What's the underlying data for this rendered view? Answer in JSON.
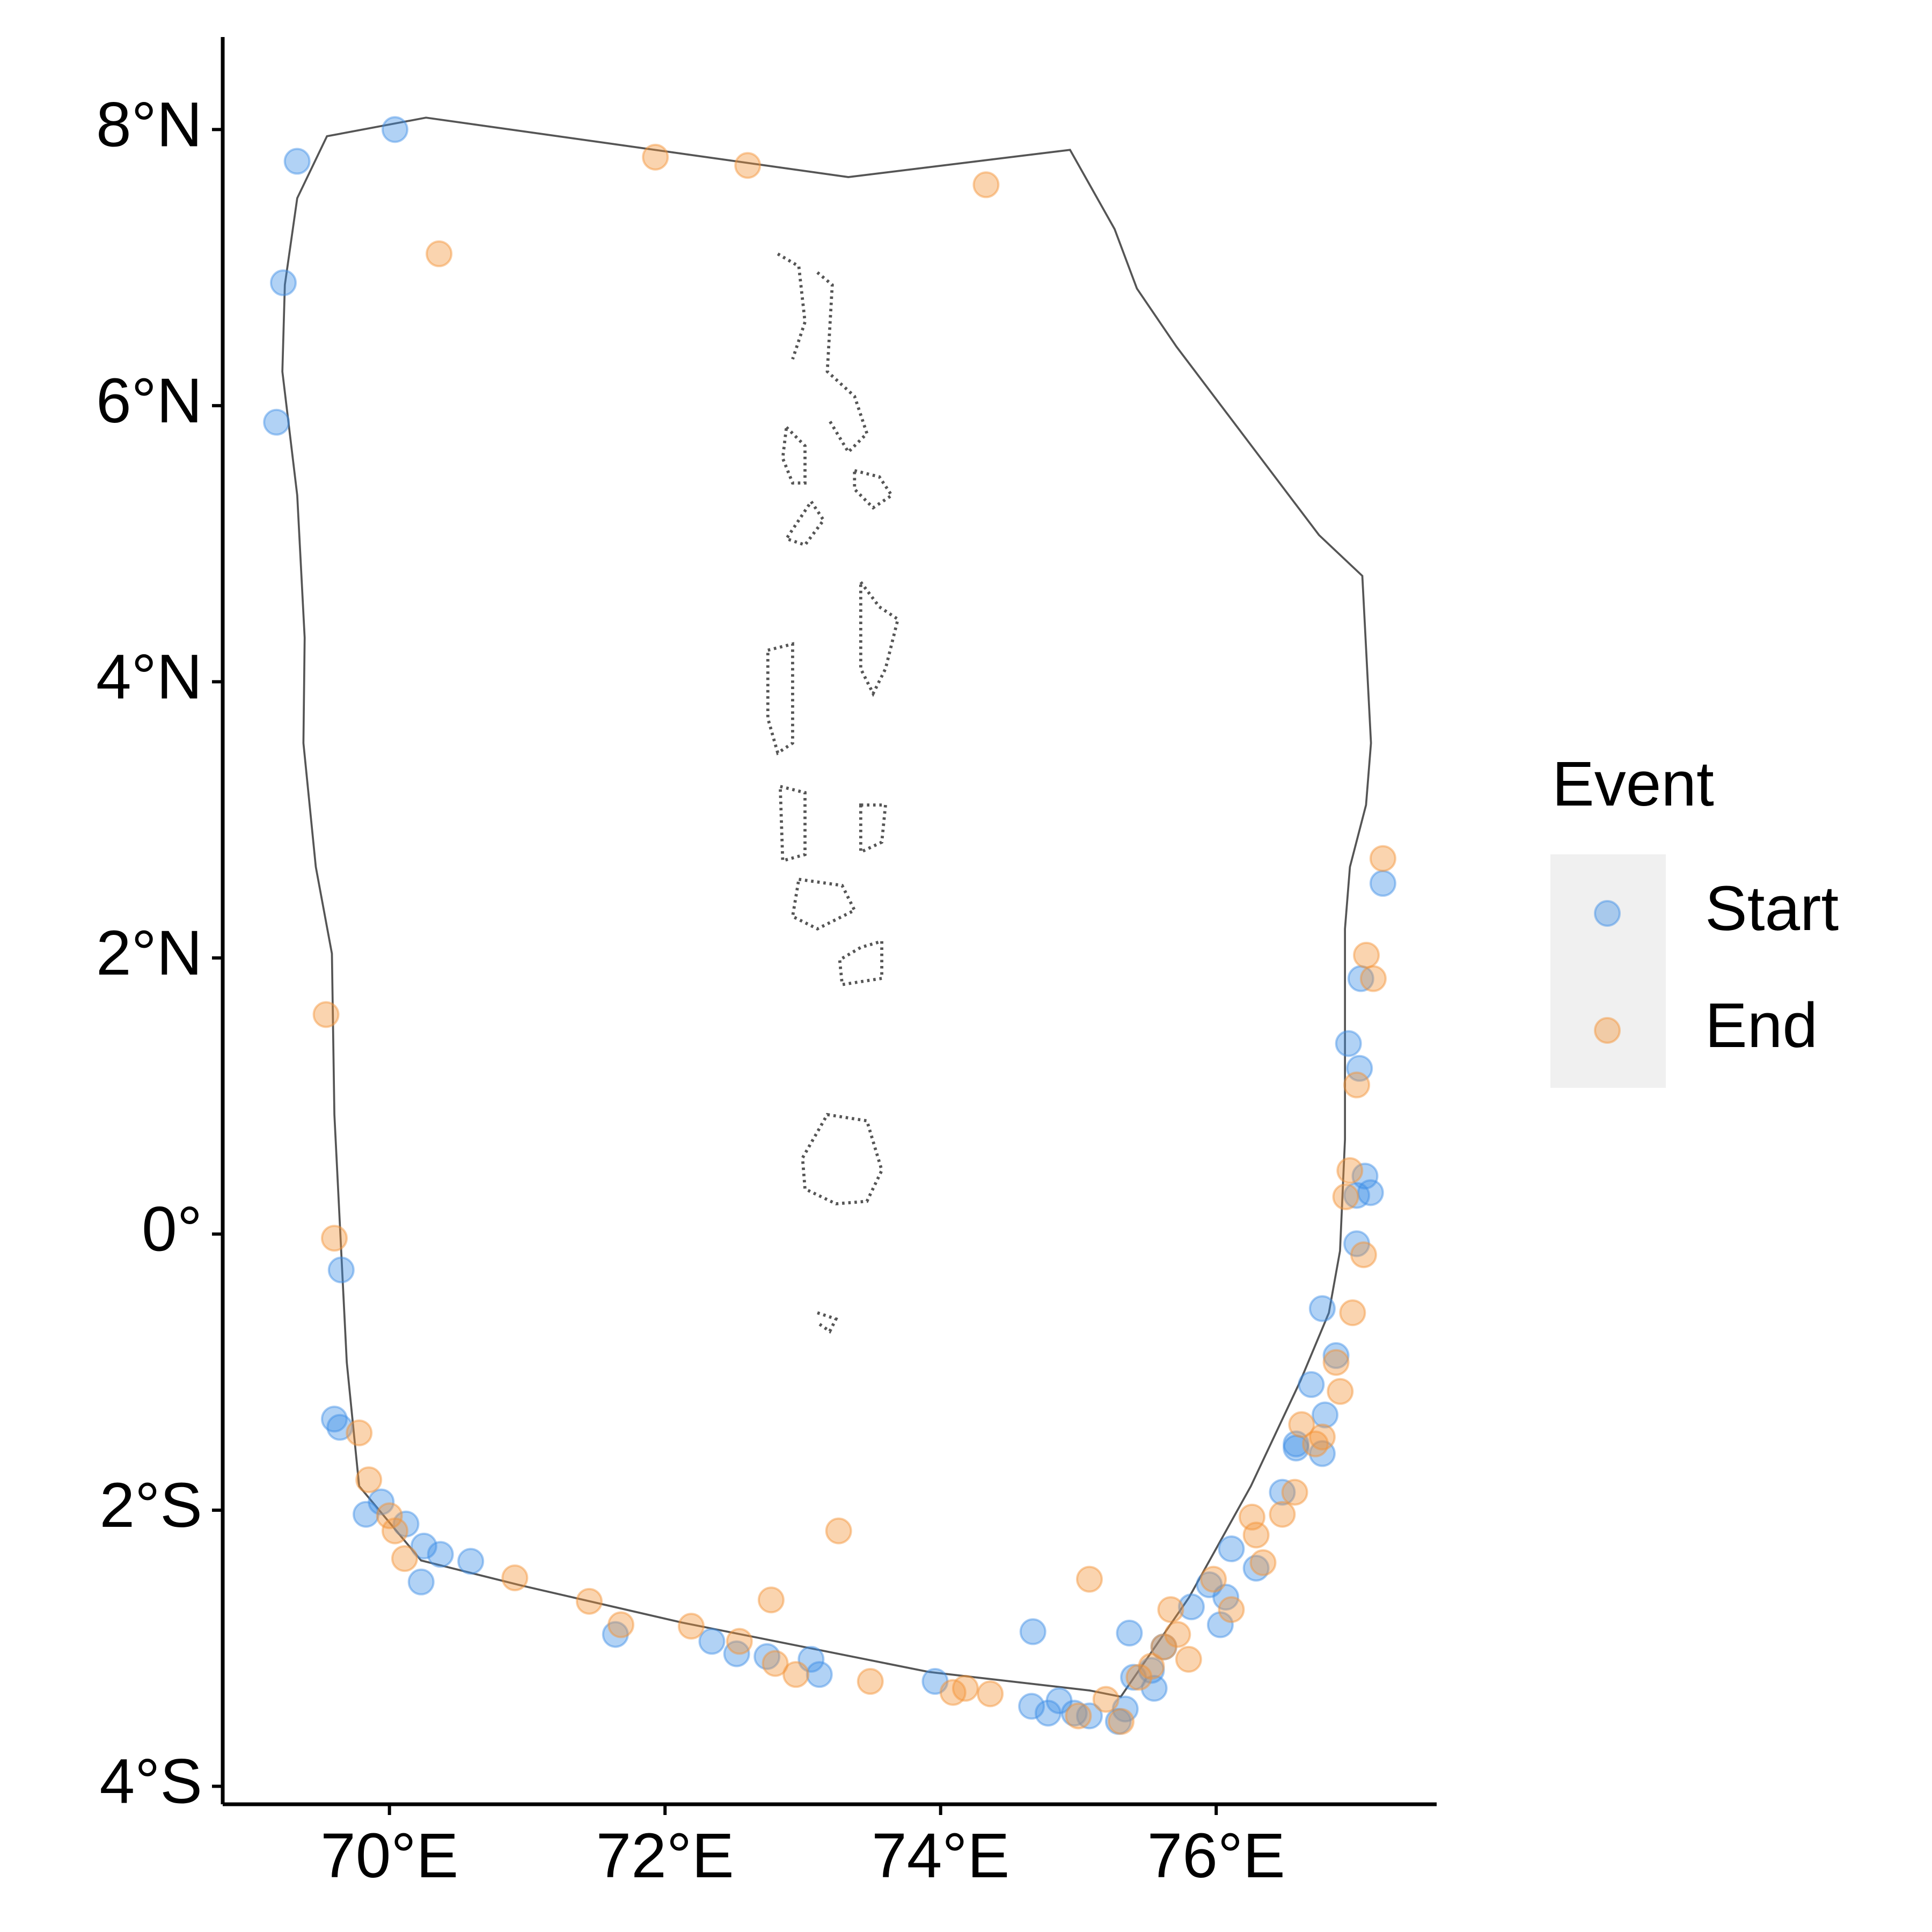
{
  "chart_data": {
    "type": "scatter",
    "legend_title": "Event",
    "legend_position": "right",
    "xlim": [
      68.79,
      77.6
    ],
    "ylim": [
      -4.13,
      8.67
    ],
    "xticks": [
      {
        "value": 70,
        "label": "70°E"
      },
      {
        "value": 72,
        "label": "72°E"
      },
      {
        "value": 74,
        "label": "74°E"
      },
      {
        "value": 76,
        "label": "76°E"
      }
    ],
    "yticks": [
      {
        "value": -4,
        "label": "4°S"
      },
      {
        "value": -2,
        "label": "2°S"
      },
      {
        "value": 0,
        "label": "0°"
      },
      {
        "value": 2,
        "label": "2°N"
      },
      {
        "value": 4,
        "label": "4°N"
      },
      {
        "value": 6,
        "label": "6°N"
      },
      {
        "value": 8,
        "label": "8°N"
      }
    ],
    "series": [
      {
        "name": "Start",
        "color": "#3d8fe6",
        "x": [
          69.33,
          70.04,
          69.23,
          69.18,
          77.21,
          77.05,
          76.96,
          77.04,
          77.08,
          77.12,
          77.02,
          77.02,
          69.65,
          76.77,
          76.87,
          76.69,
          76.79,
          69.6,
          69.64,
          76.58,
          76.77,
          76.58,
          69.94,
          69.83,
          70.12,
          70.25,
          70.37,
          70.59,
          70.23,
          76.48,
          76.11,
          76.29,
          76.07,
          75.95,
          76.03,
          74.67,
          75.37,
          71.64,
          72.34,
          72.52,
          72.74,
          73.06,
          73.12,
          73.96,
          75.62,
          75.53,
          75.4,
          75.55,
          74.66,
          74.78,
          74.86,
          74.97,
          75.08,
          75.34,
          75.29,
          75.82
        ],
        "values": [
          7.77,
          8.0,
          6.89,
          5.88,
          2.54,
          1.85,
          1.38,
          1.2,
          0.42,
          0.3,
          0.28,
          -0.07,
          -0.26,
          -0.54,
          -0.88,
          -1.09,
          -1.31,
          -1.34,
          -1.4,
          -1.52,
          -1.59,
          -1.55,
          -1.94,
          -2.03,
          -2.1,
          -2.26,
          -2.32,
          -2.37,
          -2.52,
          -1.87,
          -2.28,
          -2.42,
          -2.63,
          -2.54,
          -2.83,
          -2.88,
          -2.89,
          -2.9,
          -2.95,
          -3.04,
          -3.06,
          -3.08,
          -3.19,
          -3.24,
          -2.99,
          -3.16,
          -3.21,
          -3.29,
          -3.42,
          -3.47,
          -3.38,
          -3.47,
          -3.49,
          -3.44,
          -3.53,
          -2.7
        ]
      },
      {
        "name": "End",
        "color": "#f39336",
        "x": [
          70.36,
          71.93,
          72.6,
          74.33,
          77.21,
          77.09,
          77.14,
          69.54,
          77.02,
          76.97,
          76.94,
          69.6,
          77.07,
          76.99,
          76.87,
          76.9,
          69.78,
          76.62,
          76.77,
          76.72,
          69.85,
          70.0,
          70.04,
          70.11,
          76.57,
          76.48,
          76.26,
          76.29,
          76.34,
          73.26,
          70.91,
          75.08,
          71.45,
          72.77,
          75.98,
          76.11,
          75.67,
          71.68,
          72.19,
          72.54,
          75.72,
          75.62,
          75.8,
          72.8,
          72.95,
          73.49,
          74.09,
          74.18,
          74.36,
          75.53,
          75.44,
          75.0,
          75.2,
          75.31
        ],
        "values": [
          7.1,
          7.8,
          7.74,
          7.6,
          2.72,
          2.02,
          1.85,
          1.59,
          1.08,
          0.46,
          0.27,
          -0.03,
          -0.15,
          -0.57,
          -0.93,
          -1.14,
          -1.44,
          -1.38,
          -1.47,
          -1.52,
          -1.78,
          -2.04,
          -2.15,
          -2.35,
          -1.87,
          -2.03,
          -2.05,
          -2.18,
          -2.38,
          -2.15,
          -2.49,
          -2.5,
          -2.66,
          -2.65,
          -2.5,
          -2.72,
          -2.72,
          -2.83,
          -2.84,
          -2.95,
          -2.9,
          -2.99,
          -3.08,
          -3.11,
          -3.19,
          -3.24,
          -3.32,
          -3.29,
          -3.33,
          -3.13,
          -3.21,
          -3.49,
          -3.37,
          -3.53
        ]
      }
    ]
  }
}
